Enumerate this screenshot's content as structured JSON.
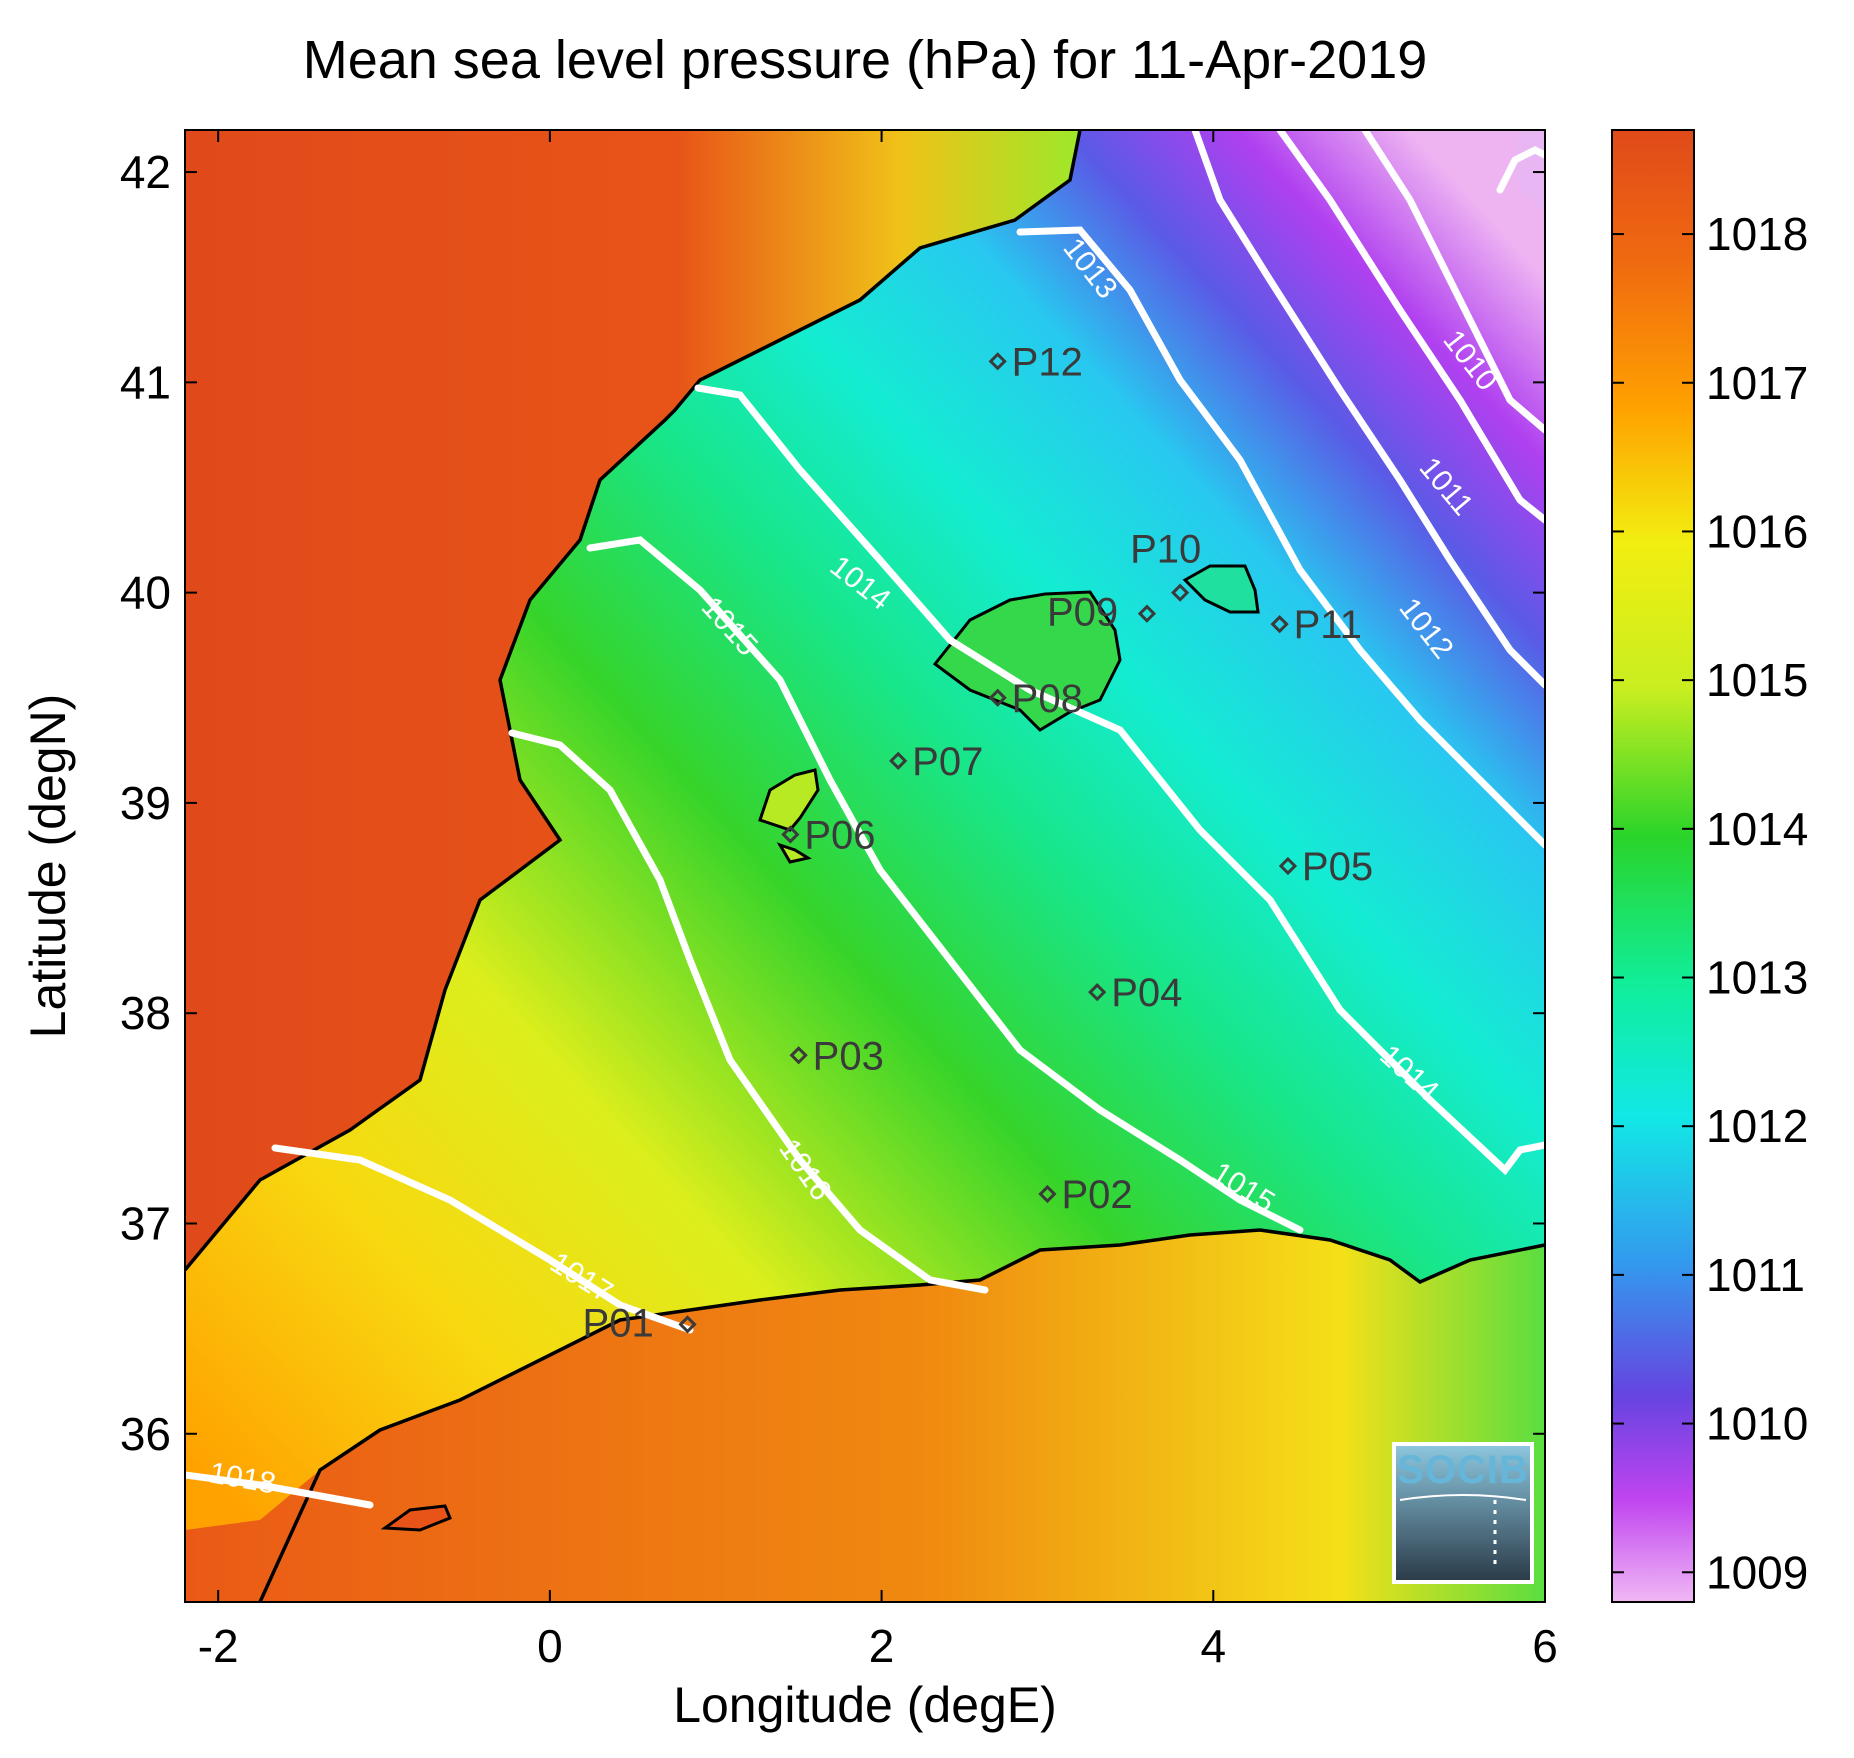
{
  "title": "Mean sea level pressure (hPa) for 11-Apr-2019",
  "xlabel": "Longitude (degE)",
  "ylabel": "Latitude (degN)",
  "logo_text": "SOCIB",
  "colors": {
    "land_high": "#e04a1a",
    "land_mid": "#ffa200",
    "sea_low": "#e6a6f0",
    "contour": "#ffffff",
    "coast": "#000000",
    "station": "#3a3a3a"
  },
  "chart_data": {
    "type": "heatmap",
    "variable": "Mean sea level pressure",
    "unit": "hPa",
    "date": "11-Apr-2019",
    "xlim": [
      -2.2,
      6
    ],
    "ylim": [
      35.2,
      42.2
    ],
    "x_ticks": [
      -2,
      0,
      2,
      4,
      6
    ],
    "y_ticks": [
      36,
      37,
      38,
      39,
      40,
      41,
      42
    ],
    "x_tick_labels": [
      "-2",
      "0",
      "2",
      "4",
      "6"
    ],
    "y_tick_labels": [
      "36",
      "37",
      "38",
      "39",
      "40",
      "41",
      "42"
    ],
    "colorbar": {
      "range": [
        1008.8,
        1018.7
      ],
      "ticks": [
        1009,
        1010,
        1011,
        1012,
        1013,
        1014,
        1015,
        1016,
        1017,
        1018
      ],
      "tick_labels": [
        "1009",
        "1010",
        "1011",
        "1012",
        "1013",
        "1014",
        "1015",
        "1016",
        "1017",
        "1018"
      ]
    },
    "contour_labels": [
      "1018",
      "1017",
      "1016",
      "1015",
      "1015",
      "1014",
      "1014",
      "1013",
      "1012",
      "1011",
      "1010"
    ],
    "stations": [
      {
        "name": "P01",
        "lon": 0.83,
        "lat": 36.52
      },
      {
        "name": "P02",
        "lon": 3.0,
        "lat": 37.14
      },
      {
        "name": "P03",
        "lon": 1.5,
        "lat": 37.8
      },
      {
        "name": "P04",
        "lon": 3.3,
        "lat": 38.1
      },
      {
        "name": "P05",
        "lon": 4.45,
        "lat": 38.7
      },
      {
        "name": "P06",
        "lon": 1.45,
        "lat": 38.85
      },
      {
        "name": "P07",
        "lon": 2.1,
        "lat": 39.2
      },
      {
        "name": "P08",
        "lon": 2.7,
        "lat": 39.5
      },
      {
        "name": "P09",
        "lon": 3.6,
        "lat": 39.9
      },
      {
        "name": "P10",
        "lon": 3.8,
        "lat": 40.0
      },
      {
        "name": "P11",
        "lon": 4.4,
        "lat": 39.85
      },
      {
        "name": "P12",
        "lon": 2.7,
        "lat": 41.1
      }
    ]
  }
}
